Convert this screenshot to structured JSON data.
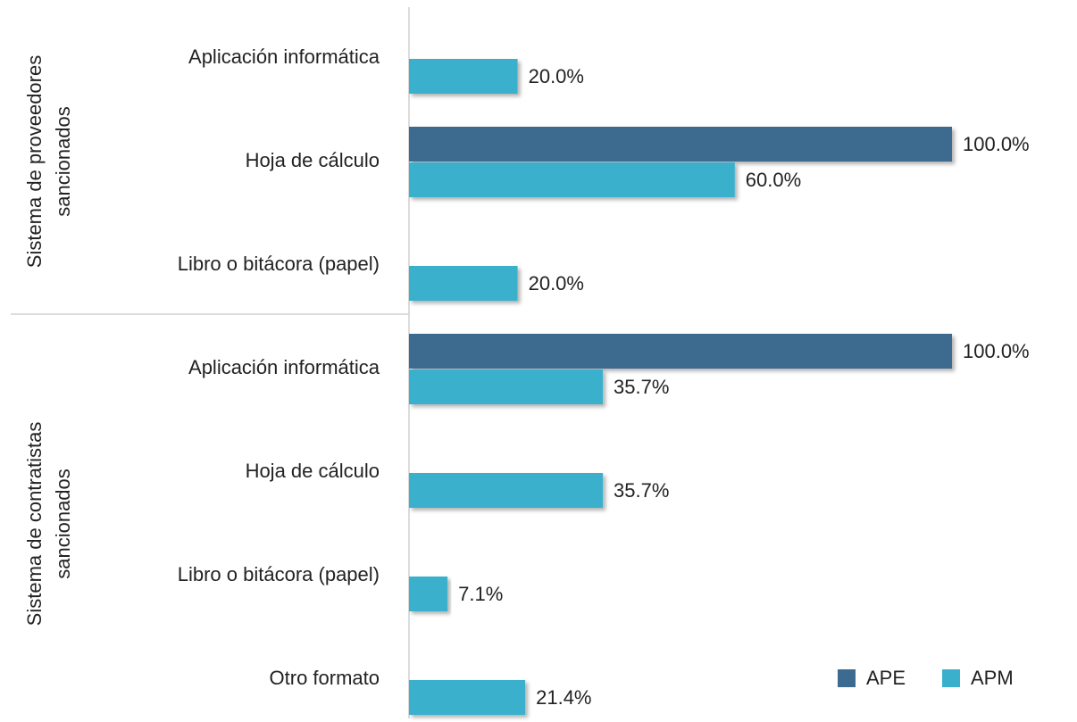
{
  "chart_data": {
    "type": "bar",
    "orientation": "horizontal",
    "groups": [
      {
        "name": [
          "Sistema de proveedores",
          "sancionados"
        ],
        "categories": [
          "Aplicación informática",
          "Hoja de cálculo",
          "Libro o bitácora (papel)"
        ]
      },
      {
        "name": [
          "Sistema de contratistas",
          "sancionados"
        ],
        "categories": [
          "Aplicación informática",
          "Hoja de cálculo",
          "Libro o bitácora (papel)",
          "Otro formato"
        ]
      }
    ],
    "series": [
      {
        "name": "APE",
        "color": "#3d6a8f",
        "values": [
          null,
          100,
          null,
          100,
          null,
          null,
          null
        ],
        "value_labels": [
          null,
          "100.0%",
          null,
          "100.0%",
          null,
          null,
          null
        ]
      },
      {
        "name": "APM",
        "color": "#3bb0cc",
        "values": [
          20,
          60,
          20,
          35.7,
          35.7,
          7.1,
          21.4
        ],
        "value_labels": [
          "20.0%",
          "60.0%",
          "20.0%",
          "35.7%",
          "35.7%",
          "7.1%",
          "21.4%"
        ]
      }
    ],
    "legend": "bottom-right"
  }
}
